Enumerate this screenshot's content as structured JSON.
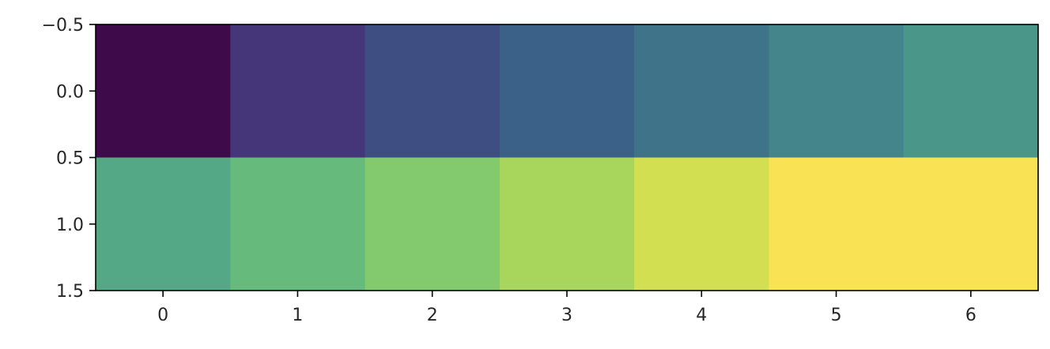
{
  "chart_data": {
    "type": "heatmap",
    "title": "",
    "xlabel": "",
    "ylabel": "",
    "x": [
      0,
      1,
      2,
      3,
      4,
      5,
      6
    ],
    "y": [
      0,
      1
    ],
    "xlim": [
      -0.5,
      6.5
    ],
    "ylim": [
      1.5,
      -0.5
    ],
    "y_inverted": true,
    "x_ticks": [
      0,
      1,
      2,
      3,
      4,
      5,
      6
    ],
    "x_tick_labels": [
      "0",
      "1",
      "2",
      "3",
      "4",
      "5",
      "6"
    ],
    "y_ticks": [
      -0.5,
      0.0,
      0.5,
      1.0,
      1.5
    ],
    "y_tick_labels": [
      "−0.5",
      "0.0",
      "0.5",
      "1.0",
      "1.5"
    ],
    "colormap": "viridis",
    "grid": false,
    "legend": "none",
    "values": [
      [
        0,
        1,
        2,
        3,
        4,
        5,
        6
      ],
      [
        7,
        8,
        9,
        10,
        11,
        12,
        12
      ]
    ],
    "cell_colors": [
      [
        "#3e0a4a",
        "#45367a",
        "#3e4e82",
        "#3c6188",
        "#3e7389",
        "#43858b",
        "#4a978a"
      ],
      [
        "#55a886",
        "#66ba7c",
        "#83c96e",
        "#a8d55c",
        "#d1df50",
        "#f9e355",
        "#f9e355"
      ]
    ]
  }
}
